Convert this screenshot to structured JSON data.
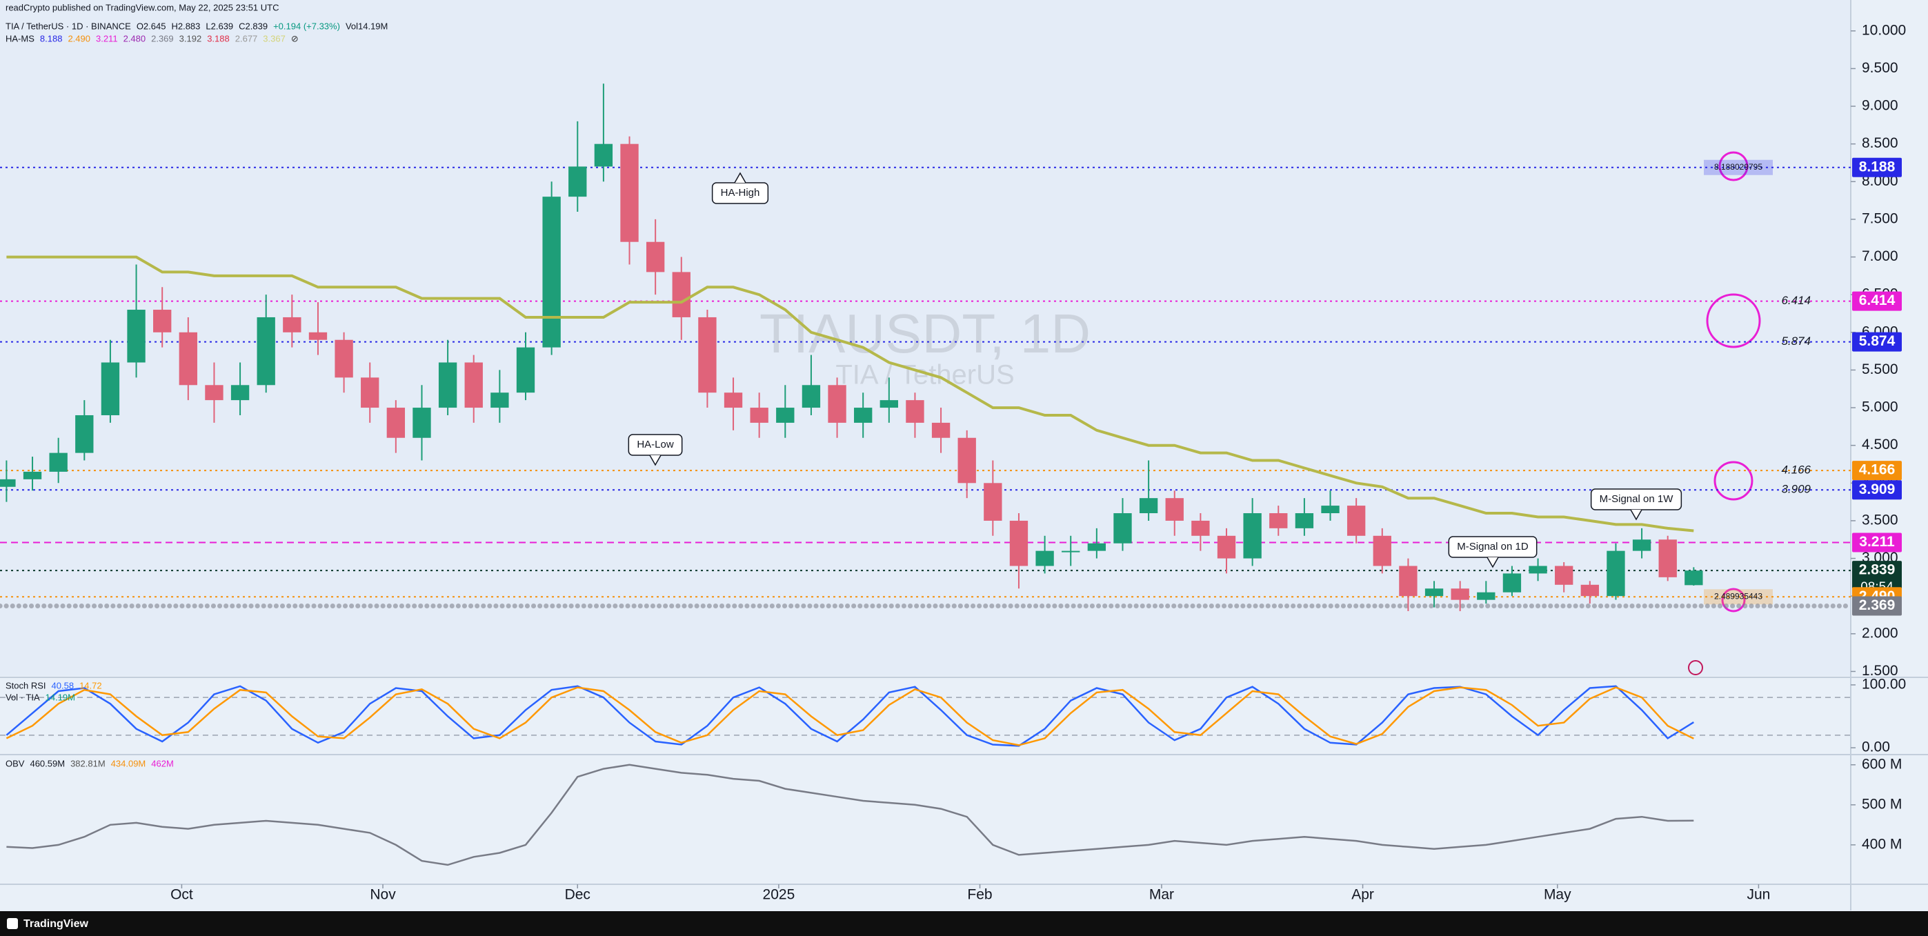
{
  "header": {
    "publisher": "readCrypto published on TradingView.com, May 22, 2025 23:51 UTC",
    "brand": "TradingView"
  },
  "chart_data": [
    {
      "type": "candlestick",
      "title": "TIAUSDT, 1D",
      "subtitle": "TIA / TetherUS",
      "legend": [
        "TIA / TetherUS · 1D · BINANCE",
        "O2.645",
        "H2.883",
        "L2.639",
        "C2.839",
        "+0.194 (+7.33%)",
        "Vol14.19M"
      ],
      "indicator": {
        "name": "HA-MS",
        "readings": [
          {
            "text": "8.188",
            "color": "#2828e6"
          },
          {
            "text": "2.490",
            "color": "#f5900b"
          },
          {
            "text": "3.211",
            "color": "#e91ed5"
          },
          {
            "text": "2.480",
            "color": "#9c27b0"
          },
          {
            "text": "2.369",
            "color": "#787b86"
          },
          {
            "text": "3.192",
            "color": "#555555"
          },
          {
            "text": "3.188",
            "color": "#e0304a"
          },
          {
            "text": "2.677",
            "color": "#999999"
          },
          {
            "text": "3.367",
            "color": "#d4d47a"
          },
          {
            "text": "⊘",
            "color": "#333333"
          }
        ]
      },
      "x": [
        1,
        5,
        9,
        13,
        17,
        21,
        25,
        29,
        33,
        37,
        41,
        45,
        49,
        53,
        57,
        61,
        65,
        69,
        73,
        77,
        81,
        85,
        89,
        93,
        97,
        101,
        105,
        109,
        113,
        117,
        121,
        125,
        129,
        133,
        137,
        141,
        145,
        149,
        153,
        157,
        161,
        165,
        169,
        173,
        177,
        181,
        185,
        189,
        193,
        197,
        201,
        205,
        209,
        213,
        217,
        221,
        225,
        229,
        233,
        237,
        241,
        245,
        249,
        253,
        257,
        261
      ],
      "open": [
        3.95,
        4.05,
        4.15,
        4.4,
        4.9,
        5.6,
        6.3,
        6.0,
        5.3,
        5.1,
        5.3,
        6.2,
        6.0,
        5.9,
        5.4,
        5.0,
        4.6,
        5.0,
        5.6,
        5.0,
        5.2,
        5.8,
        7.8,
        8.2,
        8.5,
        7.2,
        6.8,
        6.2,
        5.2,
        5.0,
        4.8,
        5.0,
        5.3,
        4.8,
        5.0,
        5.1,
        4.8,
        4.6,
        4.0,
        3.5,
        2.9,
        3.1,
        3.1,
        3.2,
        3.6,
        3.8,
        3.5,
        3.3,
        3.0,
        3.6,
        3.4,
        3.6,
        3.7,
        3.3,
        2.9,
        2.5,
        2.6,
        2.45,
        2.55,
        2.8,
        2.9,
        2.65,
        2.5,
        3.1,
        3.25,
        2.645
      ],
      "high": [
        4.3,
        4.35,
        4.6,
        5.1,
        5.9,
        6.9,
        6.6,
        6.2,
        5.6,
        5.6,
        6.5,
        6.5,
        6.4,
        6.0,
        5.6,
        5.1,
        5.3,
        5.9,
        5.7,
        5.5,
        6.0,
        8.0,
        8.8,
        9.3,
        8.6,
        7.5,
        7.0,
        6.3,
        5.4,
        5.2,
        5.3,
        5.7,
        5.4,
        5.2,
        5.4,
        5.2,
        5.0,
        4.7,
        4.3,
        3.6,
        3.3,
        3.3,
        3.4,
        3.8,
        4.3,
        3.9,
        3.6,
        3.4,
        3.8,
        3.7,
        3.8,
        3.9,
        3.8,
        3.4,
        3.0,
        2.7,
        2.7,
        2.7,
        2.9,
        3.0,
        2.95,
        2.7,
        3.2,
        3.4,
        3.3,
        2.883
      ],
      "low": [
        3.75,
        3.9,
        4.0,
        4.3,
        4.8,
        5.4,
        5.8,
        5.1,
        4.8,
        4.9,
        5.2,
        5.8,
        5.7,
        5.2,
        4.8,
        4.4,
        4.3,
        4.9,
        4.8,
        4.8,
        5.1,
        5.7,
        7.6,
        8.0,
        6.9,
        6.5,
        5.9,
        5.0,
        4.7,
        4.6,
        4.6,
        4.9,
        4.6,
        4.6,
        4.8,
        4.6,
        4.4,
        3.8,
        3.3,
        2.6,
        2.8,
        2.9,
        3.0,
        3.1,
        3.5,
        3.3,
        3.1,
        2.8,
        2.9,
        3.3,
        3.3,
        3.5,
        3.2,
        2.8,
        2.3,
        2.35,
        2.3,
        2.4,
        2.5,
        2.7,
        2.55,
        2.4,
        2.45,
        3.0,
        2.7,
        2.639
      ],
      "close": [
        4.05,
        4.15,
        4.4,
        4.9,
        5.6,
        6.3,
        6.0,
        5.3,
        5.1,
        5.3,
        6.2,
        6.0,
        5.9,
        5.4,
        5.0,
        4.6,
        5.0,
        5.6,
        5.0,
        5.2,
        5.8,
        7.8,
        8.2,
        8.5,
        7.2,
        6.8,
        6.2,
        5.2,
        5.0,
        4.8,
        5.0,
        5.3,
        4.8,
        5.0,
        5.1,
        4.8,
        4.6,
        4.0,
        3.5,
        2.9,
        3.1,
        3.1,
        3.2,
        3.6,
        3.8,
        3.5,
        3.3,
        3.0,
        3.6,
        3.4,
        3.6,
        3.7,
        3.3,
        2.9,
        2.5,
        2.6,
        2.45,
        2.55,
        2.8,
        2.9,
        2.65,
        2.5,
        3.1,
        3.25,
        2.75,
        2.839
      ],
      "up_color": "#1e9e78",
      "down_color": "#e0637a",
      "series": [
        {
          "name": "M-Signal on 1W",
          "color": "#b5b84a",
          "values": [
            7.0,
            7.0,
            7.0,
            7.0,
            7.0,
            7.0,
            6.8,
            6.8,
            6.75,
            6.75,
            6.75,
            6.75,
            6.6,
            6.6,
            6.6,
            6.6,
            6.45,
            6.45,
            6.45,
            6.45,
            6.2,
            6.2,
            6.2,
            6.2,
            6.4,
            6.4,
            6.4,
            6.6,
            6.6,
            6.5,
            6.3,
            6.0,
            5.9,
            5.8,
            5.6,
            5.5,
            5.4,
            5.2,
            5.0,
            5.0,
            4.9,
            4.9,
            4.7,
            4.6,
            4.5,
            4.5,
            4.4,
            4.4,
            4.3,
            4.3,
            4.2,
            4.1,
            4.0,
            3.95,
            3.8,
            3.8,
            3.7,
            3.6,
            3.6,
            3.55,
            3.55,
            3.5,
            3.45,
            3.45,
            3.4,
            3.367
          ]
        }
      ],
      "annotations": [
        "HA-High",
        "HA-Low",
        "M-Signal on 1D"
      ],
      "levels": [
        {
          "value": 8.188,
          "label": "8.188",
          "color": "#2828e6",
          "style": "dotted",
          "detail": "8.188029795"
        },
        {
          "value": 6.414,
          "label": "6.414",
          "color": "#e91ed5",
          "style": "dotted",
          "side_label": true
        },
        {
          "value": 5.874,
          "label": "5.874",
          "color": "#2828e6",
          "style": "dotted",
          "side_label": true
        },
        {
          "value": 4.166,
          "label": "4.166",
          "color": "#f5900b",
          "style": "dotted",
          "side_label": true
        },
        {
          "value": 3.909,
          "label": "3.909",
          "color": "#2828e6",
          "style": "dotted",
          "side_label": true
        },
        {
          "value": 3.211,
          "label": "3.211",
          "color": "#e91ed5",
          "style": "dashed"
        },
        {
          "value": 2.839,
          "label": "2.839",
          "color": "#0c3b2e",
          "style": "dotted",
          "countdown": "08:54"
        },
        {
          "value": 2.49,
          "label": "2.490",
          "color": "#f5900b",
          "style": "dotted",
          "detail": "2.489935443"
        },
        {
          "value": 2.369,
          "label": "2.369",
          "color": "#787b86",
          "style": "circles"
        }
      ],
      "xlim": [
        0,
        285.2
      ],
      "ylim": [
        1.44,
        10.41
      ],
      "yticks": [
        {
          "value": 1.5,
          "label": "1.500"
        },
        {
          "value": 2,
          "label": "2.000"
        },
        {
          "value": 2.5,
          "label": "2.500"
        },
        {
          "value": 3,
          "label": "3.000"
        },
        {
          "value": 3.5,
          "label": "3.500"
        },
        {
          "value": 4,
          "label": "4.000"
        },
        {
          "value": 4.5,
          "label": "4.500"
        },
        {
          "value": 5,
          "label": "5.000"
        },
        {
          "value": 5.5,
          "label": "5.500"
        },
        {
          "value": 6,
          "label": "6.000"
        },
        {
          "value": 6.5,
          "label": "6.500"
        },
        {
          "value": 7,
          "label": "7.000"
        },
        {
          "value": 7.5,
          "label": "7.500"
        },
        {
          "value": 8,
          "label": "8.000"
        },
        {
          "value": 8.5,
          "label": "8.500"
        },
        {
          "value": 9,
          "label": "9.000"
        },
        {
          "value": 9.5,
          "label": "9.500"
        },
        {
          "value": 10,
          "label": "10.000"
        }
      ]
    },
    {
      "type": "line",
      "title": "Stoch RSI",
      "volume_title": "Vol · TIA",
      "volume_reading": "14.19M",
      "series": [
        {
          "color": "#2962ff",
          "values": [
            20,
            55,
            90,
            95,
            70,
            30,
            10,
            40,
            85,
            98,
            75,
            30,
            8,
            25,
            70,
            95,
            90,
            50,
            15,
            20,
            60,
            92,
            98,
            80,
            40,
            10,
            5,
            35,
            80,
            96,
            70,
            30,
            10,
            45,
            88,
            97,
            60,
            20,
            5,
            3,
            30,
            75,
            95,
            85,
            40,
            12,
            30,
            80,
            97,
            70,
            30,
            8,
            5,
            40,
            85,
            95,
            97,
            85,
            50,
            20,
            60,
            95,
            98,
            60,
            15,
            40.58
          ]
        },
        {
          "color": "#ff9800",
          "values": [
            15,
            35,
            70,
            92,
            85,
            50,
            20,
            25,
            62,
            92,
            88,
            50,
            18,
            15,
            48,
            85,
            93,
            70,
            30,
            15,
            40,
            80,
            96,
            90,
            60,
            25,
            8,
            20,
            60,
            90,
            85,
            50,
            20,
            28,
            68,
            93,
            80,
            40,
            12,
            4,
            15,
            55,
            88,
            92,
            62,
            25,
            20,
            55,
            90,
            85,
            50,
            18,
            6,
            22,
            65,
            90,
            96,
            92,
            68,
            35,
            40,
            78,
            96,
            80,
            35,
            14.72
          ]
        }
      ],
      "bands": [
        20,
        80
      ],
      "xlim": [
        0,
        285.2
      ],
      "ylim": [
        -9.8,
        109.8
      ],
      "yticks": [
        {
          "value": 0,
          "label": "0.00"
        },
        {
          "value": 100,
          "label": "100.00"
        }
      ]
    },
    {
      "type": "line",
      "title": "OBV",
      "readings": [
        "460.59M",
        "382.81M",
        "434.09M",
        "462M"
      ],
      "series": [
        {
          "color": "#787b86",
          "values": [
            395,
            392,
            400,
            420,
            450,
            455,
            445,
            440,
            450,
            455,
            460,
            455,
            450,
            440,
            430,
            400,
            360,
            350,
            370,
            380,
            400,
            480,
            570,
            590,
            600,
            590,
            580,
            575,
            565,
            560,
            540,
            530,
            520,
            510,
            505,
            500,
            490,
            470,
            400,
            375,
            380,
            385,
            390,
            395,
            400,
            410,
            405,
            400,
            410,
            415,
            420,
            415,
            410,
            400,
            395,
            390,
            395,
            400,
            410,
            420,
            430,
            440,
            465,
            470,
            460,
            460.59
          ]
        }
      ],
      "xlim": [
        0,
        285.2
      ],
      "ylim": [
        305,
        622
      ],
      "yticks": [
        {
          "value": 400,
          "label": "400 M"
        },
        {
          "value": 500,
          "label": "500 M"
        },
        {
          "value": 600,
          "label": "600 M"
        }
      ],
      "xticks": [
        {
          "value": 28,
          "label": "Oct"
        },
        {
          "value": 59,
          "label": "Nov"
        },
        {
          "value": 89,
          "label": "Dec"
        },
        {
          "value": 120,
          "label": "2025"
        },
        {
          "value": 151,
          "label": "Feb"
        },
        {
          "value": 179,
          "label": "Mar"
        },
        {
          "value": 210,
          "label": "Apr"
        },
        {
          "value": 240,
          "label": "May"
        },
        {
          "value": 271,
          "label": "Jun"
        }
      ]
    }
  ]
}
